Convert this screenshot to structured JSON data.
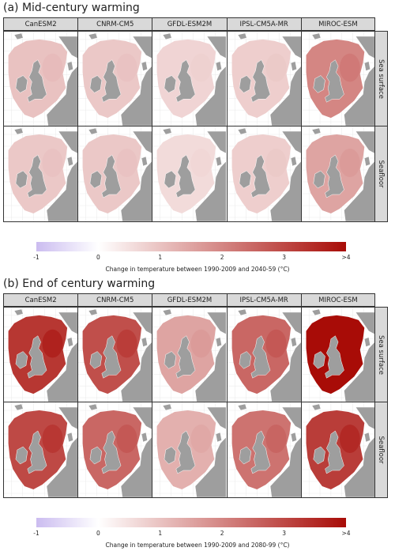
{
  "sections": [
    {
      "title": "(a) Mid-century warming",
      "colorbar_caption": "Change in temperature between 1990-2009 and 2040-59 (°C)",
      "values": {
        "sea_surface": [
          1.0,
          0.9,
          0.7,
          0.8,
          2.0
        ],
        "seafloor": [
          0.9,
          0.9,
          0.6,
          0.8,
          1.5
        ]
      }
    },
    {
      "title": "(b) End of century warming",
      "colorbar_caption": "Change in temperature between 1990-2009 and 2080-99  (°C)",
      "values": {
        "sea_surface": [
          3.3,
          2.9,
          1.5,
          2.5,
          4.0
        ],
        "seafloor": [
          3.0,
          2.5,
          1.3,
          2.3,
          3.2
        ]
      }
    }
  ],
  "models": [
    "CanESM2",
    "CNRM-CM5",
    "GFDL-ESM2M",
    "IPSL-CM5A-MR",
    "MIROC-ESM"
  ],
  "rows": [
    "Sea surface",
    "Seafloor"
  ],
  "colorbar": {
    "ticks": [
      "-1",
      "0",
      "1",
      "2",
      "3",
      ">4"
    ],
    "tick_values": [
      -1,
      0,
      1,
      2,
      3,
      4
    ],
    "range": [
      -1,
      4
    ],
    "colors": [
      "#cbbcf0",
      "#ffffff",
      "#a80c07"
    ]
  },
  "colors": {
    "land": "#9e9e9e",
    "coastline": "#ffffff",
    "graticule": "#e4e4e4"
  }
}
